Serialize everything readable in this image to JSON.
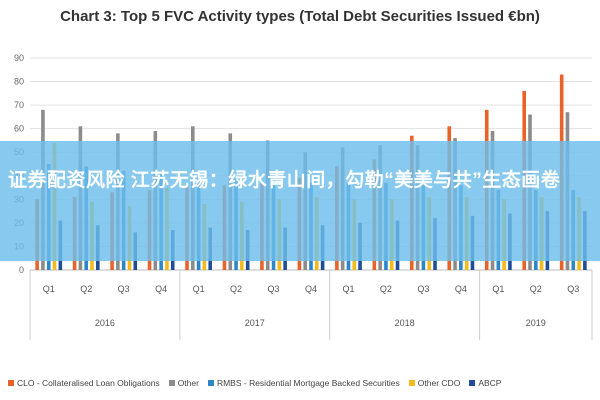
{
  "chart_data": {
    "type": "bar",
    "title": "Chart 3: Top 5 FVC Activity types (Total Debt Securities Issued €bn)",
    "years": [
      {
        "label": "2016",
        "quarters": 4
      },
      {
        "label": "2017",
        "quarters": 4
      },
      {
        "label": "2018",
        "quarters": 4
      },
      {
        "label": "2019",
        "quarters": 3
      }
    ],
    "categories": [
      "Q1",
      "Q2",
      "Q3",
      "Q4",
      "Q1",
      "Q2",
      "Q3",
      "Q4",
      "Q1",
      "Q2",
      "Q3",
      "Q4",
      "Q1",
      "Q2",
      "Q3"
    ],
    "series": [
      {
        "name": "CLO - Collateralised Loan Obligations",
        "color": "#e8622a",
        "values": [
          30,
          31,
          33,
          34,
          35,
          36,
          37,
          39,
          44,
          47,
          57,
          61,
          68,
          76,
          83
        ]
      },
      {
        "name": "Other",
        "color": "#8c8c8c",
        "values": [
          68,
          61,
          58,
          59,
          61,
          58,
          55,
          50,
          52,
          53,
          53,
          56,
          59,
          66,
          67
        ]
      },
      {
        "name": "RMBS - Residential Mortgage Backed Securities",
        "color": "#2d86c6",
        "values": [
          45,
          44,
          42,
          41,
          40,
          39,
          38,
          37,
          37,
          37,
          36,
          36,
          34,
          34,
          34
        ]
      },
      {
        "name": "Other CDO",
        "color": "#f2bb1b",
        "values": [
          54,
          29,
          27,
          35,
          28,
          29,
          30,
          31,
          30,
          30,
          31,
          31,
          30,
          31,
          31
        ]
      },
      {
        "name": "ABCP",
        "color": "#1f4e96",
        "values": [
          21,
          19,
          16,
          17,
          18,
          17,
          18,
          19,
          20,
          21,
          22,
          23,
          24,
          25,
          25
        ]
      }
    ],
    "y_ticks": [
      0,
      10,
      20,
      30,
      40,
      50,
      60,
      70,
      80,
      90
    ],
    "ylim": [
      0,
      90
    ],
    "grid": true,
    "legend_position": "bottom"
  },
  "overlay": {
    "text": "证券配资风险 江苏无锡：绿水青山间，勾勒“美美与共”生态画卷"
  }
}
